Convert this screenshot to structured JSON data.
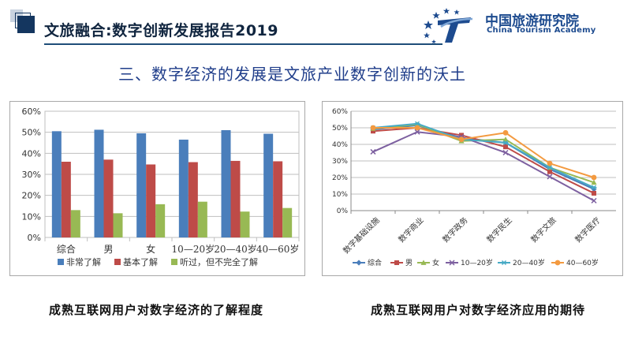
{
  "header": {
    "title": "文旅融合:数字创新发展报告2019",
    "org_name_cn": "中国旅游研究院",
    "org_name_en": "China Tourism Academy",
    "accent_color": "#1f4e79"
  },
  "section_title": "三、数字经济的发展是文旅产业数字创新的沃土",
  "captions": {
    "left": "成熟互联网用户对数字经济的了解程度",
    "right": "成熟互联网用户对数字经济应用的期待"
  },
  "chart_data": [
    {
      "type": "bar",
      "categories": [
        "综合",
        "男",
        "女",
        "10—20岁",
        "20—40岁",
        "40—60岁"
      ],
      "series": [
        {
          "name": "非常了解",
          "color": "#4a7ebb",
          "values": [
            50.5,
            51.2,
            49.5,
            46.5,
            51.0,
            49.3
          ]
        },
        {
          "name": "基本了解",
          "color": "#be4b48",
          "values": [
            36.0,
            37.0,
            34.7,
            35.8,
            36.4,
            36.2
          ]
        },
        {
          "name": "听过，但不完全了解",
          "color": "#98b954",
          "values": [
            13.0,
            11.5,
            15.8,
            17.0,
            12.3,
            14.0
          ]
        }
      ],
      "y_ticks": [
        "0%",
        "10%",
        "20%",
        "30%",
        "40%",
        "50%",
        "60%"
      ],
      "ylim": [
        0,
        60
      ],
      "grid": true,
      "legend_position": "bottom"
    },
    {
      "type": "line",
      "categories": [
        "数字基础设施",
        "数字商业",
        "数字政务",
        "数字民生",
        "数字文旅",
        "数字医疗"
      ],
      "series": [
        {
          "name": "综合",
          "color": "#4a7ebb",
          "marker": "diamond",
          "values": [
            49.0,
            51.5,
            44.0,
            41.0,
            25.0,
            13.0
          ]
        },
        {
          "name": "男",
          "color": "#be4b48",
          "marker": "square",
          "values": [
            48.0,
            50.0,
            45.5,
            38.5,
            23.5,
            10.5
          ]
        },
        {
          "name": "女",
          "color": "#98b954",
          "marker": "triangle",
          "values": [
            49.5,
            52.0,
            42.0,
            43.0,
            26.0,
            17.0
          ]
        },
        {
          "name": "10—20岁",
          "color": "#7d60a0",
          "marker": "x",
          "values": [
            35.5,
            47.5,
            44.5,
            35.0,
            20.5,
            6.0
          ]
        },
        {
          "name": "20—40岁",
          "color": "#46aac5",
          "marker": "star",
          "values": [
            50.0,
            52.5,
            43.0,
            41.0,
            26.0,
            14.0
          ]
        },
        {
          "name": "40—60岁",
          "color": "#f39a40",
          "marker": "circle",
          "values": [
            50.0,
            50.0,
            43.0,
            47.0,
            28.5,
            20.0
          ]
        }
      ],
      "y_ticks": [
        "0%",
        "10%",
        "20%",
        "30%",
        "40%",
        "50%",
        "60%"
      ],
      "ylim": [
        0,
        60
      ],
      "grid": true,
      "legend_position": "bottom"
    }
  ]
}
